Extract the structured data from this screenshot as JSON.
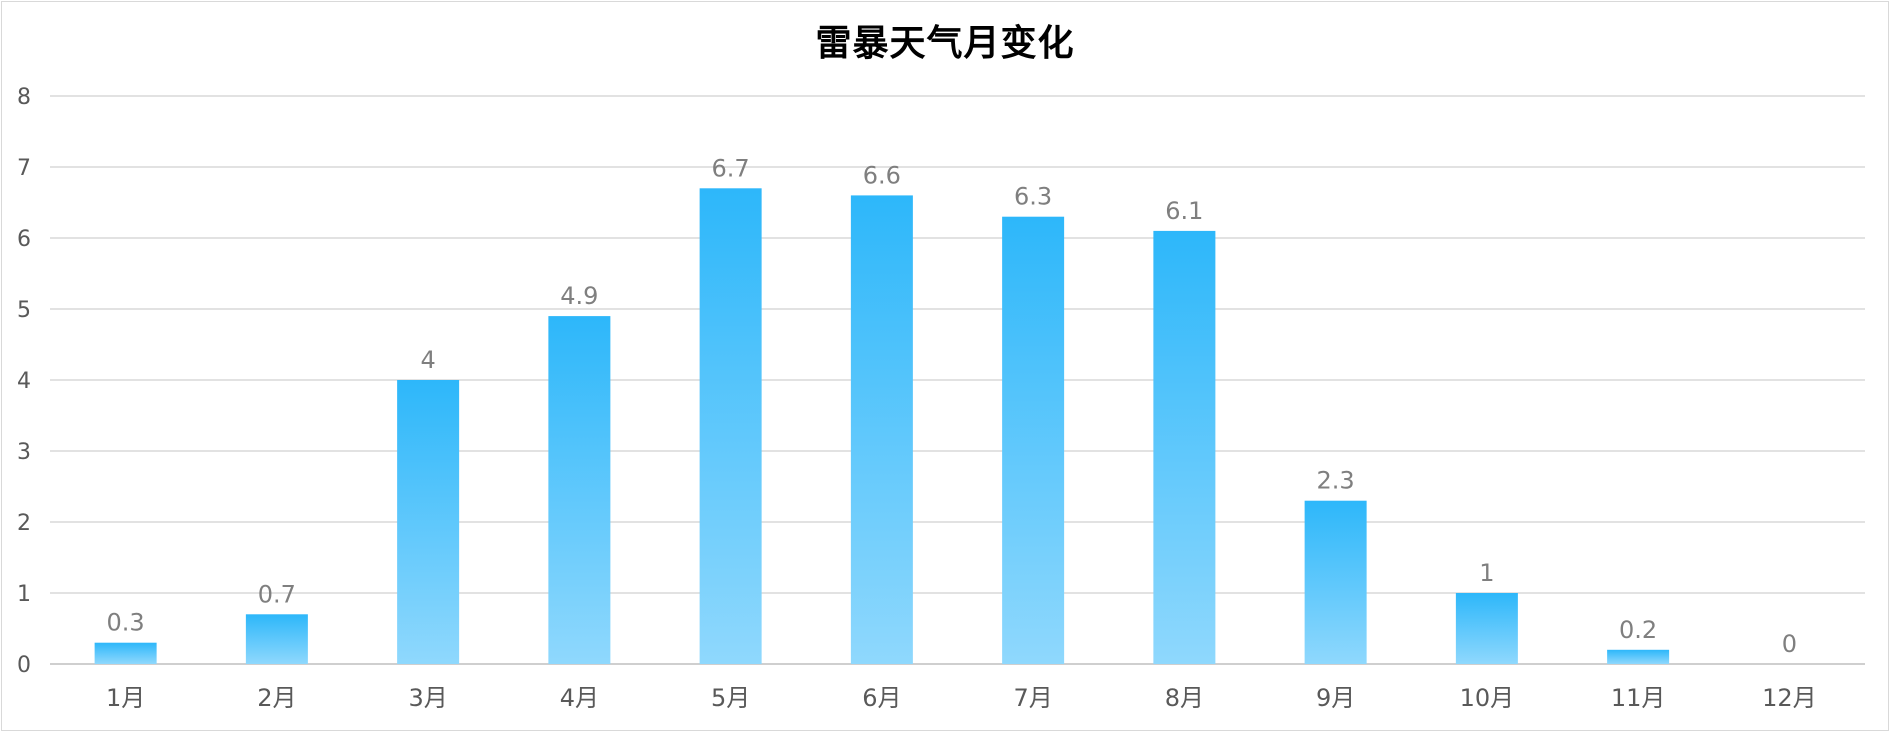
{
  "chart_data": {
    "type": "bar",
    "title": "雷暴天气月变化",
    "xlabel": "",
    "ylabel": "",
    "categories": [
      "1月",
      "2月",
      "3月",
      "4月",
      "5月",
      "6月",
      "7月",
      "8月",
      "9月",
      "10月",
      "11月",
      "12月"
    ],
    "values": [
      0.3,
      0.7,
      4,
      4.9,
      6.7,
      6.6,
      6.3,
      6.1,
      2.3,
      1,
      0.2,
      0
    ],
    "data_labels": [
      "0.3",
      "0.7",
      "4",
      "4.9",
      "6.7",
      "6.6",
      "6.3",
      "6.1",
      "2.3",
      "1",
      "0.2",
      "0"
    ],
    "yticks": [
      "0",
      "1",
      "2",
      "3",
      "4",
      "5",
      "6",
      "7",
      "8"
    ],
    "ylim": [
      0,
      8
    ],
    "grid": true,
    "legend": "none",
    "colors": {
      "bar_top": "#2db7fa",
      "bar_bottom": "#8fd8fd",
      "grid": "#d9d9d9",
      "axis": "#bfbfbf"
    }
  }
}
